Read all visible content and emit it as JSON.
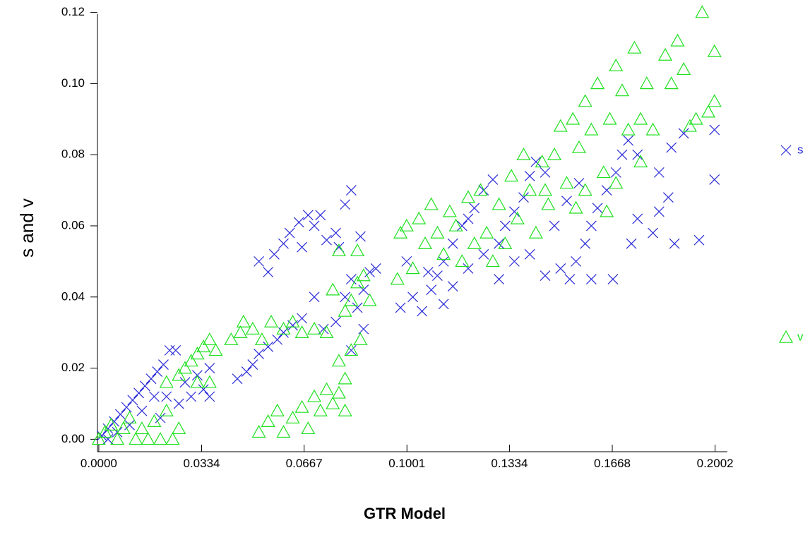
{
  "chart_data": {
    "type": "scatter",
    "x_label": "GTR Model",
    "y_label": "s and v",
    "xlim": [
      -0.0025,
      0.2035
    ],
    "ylim": [
      -0.0035,
      0.1225
    ],
    "xticks": [
      {
        "value": 0,
        "label": "0.0000"
      },
      0.0334,
      0.0667,
      0.1001,
      0.1334,
      0.1668,
      0.2002
    ],
    "yticks": [
      {
        "value": 0,
        "label": "0.00"
      },
      {
        "value": 0.02,
        "label": "0.02"
      },
      {
        "value": 0.04,
        "label": "0.04"
      },
      {
        "value": 0.06,
        "label": "0.06"
      },
      {
        "value": 0.08,
        "label": "0.08"
      },
      {
        "value": 0.1,
        "label": "0.10"
      },
      {
        "value": 0.12,
        "label": "0.12"
      }
    ],
    "legend": "right",
    "series": [
      {
        "name": "s",
        "color": "#2a2ad8",
        "marker": "x",
        "x": [
          0.001,
          0.003,
          0.005,
          0.007,
          0.009,
          0.011,
          0.013,
          0.015,
          0.017,
          0.019,
          0.021,
          0.023,
          0.025,
          0.003,
          0.006,
          0.01,
          0.014,
          0.018,
          0.022,
          0.026,
          0.03,
          0.034,
          0.036,
          0.028,
          0.032,
          0.036,
          0.02,
          0.045,
          0.048,
          0.05,
          0.052,
          0.055,
          0.058,
          0.06,
          0.063,
          0.066,
          0.07,
          0.073,
          0.052,
          0.055,
          0.057,
          0.06,
          0.062,
          0.065,
          0.068,
          0.07,
          0.072,
          0.074,
          0.077,
          0.08,
          0.082,
          0.066,
          0.085,
          0.078,
          0.077,
          0.08,
          0.082,
          0.084,
          0.086,
          0.088,
          0.09,
          0.082,
          0.086,
          0.098,
          0.1,
          0.102,
          0.105,
          0.108,
          0.11,
          0.112,
          0.115,
          0.118,
          0.12,
          0.122,
          0.125,
          0.128,
          0.115,
          0.12,
          0.125,
          0.13,
          0.132,
          0.135,
          0.138,
          0.14,
          0.142,
          0.145,
          0.13,
          0.135,
          0.14,
          0.145,
          0.15,
          0.155,
          0.158,
          0.16,
          0.162,
          0.165,
          0.168,
          0.17,
          0.172,
          0.175,
          0.153,
          0.16,
          0.167,
          0.173,
          0.175,
          0.18,
          0.182,
          0.185,
          0.187,
          0.182,
          0.186,
          0.19,
          0.195,
          0.2,
          0.2,
          0.148,
          0.152,
          0.156,
          0.112,
          0.107
        ],
        "values": [
          0.001,
          0.003,
          0.005,
          0.007,
          0.009,
          0.011,
          0.013,
          0.015,
          0.017,
          0.019,
          0.021,
          0.025,
          0.025,
          0.0,
          0.002,
          0.004,
          0.008,
          0.012,
          0.012,
          0.01,
          0.012,
          0.014,
          0.012,
          0.016,
          0.018,
          0.02,
          0.006,
          0.017,
          0.019,
          0.021,
          0.024,
          0.026,
          0.028,
          0.03,
          0.032,
          0.034,
          0.04,
          0.031,
          0.05,
          0.047,
          0.052,
          0.055,
          0.058,
          0.061,
          0.063,
          0.06,
          0.063,
          0.056,
          0.058,
          0.066,
          0.07,
          0.054,
          0.057,
          0.054,
          0.033,
          0.04,
          0.045,
          0.037,
          0.042,
          0.047,
          0.048,
          0.025,
          0.031,
          0.037,
          0.05,
          0.04,
          0.036,
          0.042,
          0.046,
          0.05,
          0.055,
          0.06,
          0.062,
          0.065,
          0.07,
          0.073,
          0.043,
          0.048,
          0.052,
          0.055,
          0.06,
          0.064,
          0.068,
          0.074,
          0.078,
          0.075,
          0.045,
          0.05,
          0.052,
          0.046,
          0.048,
          0.05,
          0.055,
          0.06,
          0.065,
          0.07,
          0.075,
          0.08,
          0.084,
          0.08,
          0.045,
          0.045,
          0.045,
          0.055,
          0.062,
          0.058,
          0.064,
          0.068,
          0.055,
          0.075,
          0.082,
          0.086,
          0.056,
          0.087,
          0.073,
          0.06,
          0.067,
          0.072,
          0.038,
          0.047
        ]
      },
      {
        "name": "v",
        "color": "#1ee01e",
        "marker": "triangle",
        "x": [
          0,
          0.002,
          0.004,
          0.006,
          0.008,
          0.01,
          0.012,
          0.014,
          0.016,
          0.018,
          0.02,
          0.022,
          0.024,
          0.026,
          0.022,
          0.026,
          0.028,
          0.03,
          0.032,
          0.034,
          0.036,
          0.038,
          0.036,
          0.032,
          0.043,
          0.046,
          0.05,
          0.053,
          0.056,
          0.06,
          0.063,
          0.066,
          0.07,
          0.074,
          0.047,
          0.052,
          0.055,
          0.058,
          0.06,
          0.063,
          0.066,
          0.068,
          0.07,
          0.072,
          0.074,
          0.076,
          0.078,
          0.08,
          0.08,
          0.076,
          0.08,
          0.082,
          0.084,
          0.086,
          0.088,
          0.078,
          0.082,
          0.085,
          0.078,
          0.084,
          0.097,
          0.098,
          0.1,
          0.102,
          0.104,
          0.106,
          0.108,
          0.11,
          0.112,
          0.114,
          0.116,
          0.118,
          0.12,
          0.122,
          0.124,
          0.126,
          0.128,
          0.13,
          0.132,
          0.134,
          0.136,
          0.138,
          0.14,
          0.142,
          0.144,
          0.146,
          0.148,
          0.15,
          0.152,
          0.154,
          0.156,
          0.158,
          0.16,
          0.162,
          0.164,
          0.166,
          0.168,
          0.17,
          0.172,
          0.174,
          0.176,
          0.178,
          0.18,
          0.184,
          0.186,
          0.188,
          0.19,
          0.192,
          0.194,
          0.196,
          0.198,
          0.2,
          0.2,
          0.158,
          0.168,
          0.176,
          0.145,
          0.155,
          0.165
        ],
        "values": [
          0,
          0.002,
          0.004,
          0,
          0.003,
          0.006,
          0.0,
          0.003,
          0.0,
          0.005,
          0.0,
          0.008,
          0.0,
          0.003,
          0.016,
          0.018,
          0.02,
          0.022,
          0.024,
          0.026,
          0.028,
          0.025,
          0.016,
          0.016,
          0.028,
          0.03,
          0.031,
          0.028,
          0.033,
          0.031,
          0.033,
          0.03,
          0.031,
          0.03,
          0.033,
          0.002,
          0.005,
          0.008,
          0.002,
          0.006,
          0.009,
          0.003,
          0.012,
          0.008,
          0.014,
          0.01,
          0.013,
          0.008,
          0.017,
          0.042,
          0.036,
          0.039,
          0.044,
          0.046,
          0.039,
          0.022,
          0.025,
          0.028,
          0.053,
          0.053,
          0.045,
          0.058,
          0.06,
          0.048,
          0.062,
          0.055,
          0.066,
          0.058,
          0.052,
          0.064,
          0.06,
          0.05,
          0.068,
          0.055,
          0.07,
          0.058,
          0.05,
          0.066,
          0.055,
          0.074,
          0.062,
          0.08,
          0.07,
          0.058,
          0.078,
          0.066,
          0.08,
          0.088,
          0.072,
          0.09,
          0.082,
          0.095,
          0.087,
          0.1,
          0.075,
          0.09,
          0.105,
          0.098,
          0.087,
          0.11,
          0.09,
          0.1,
          0.087,
          0.108,
          0.1,
          0.112,
          0.104,
          0.088,
          0.09,
          0.12,
          0.092,
          0.109,
          0.095,
          0.07,
          0.072,
          0.078,
          0.07,
          0.065,
          0.064
        ]
      }
    ]
  }
}
